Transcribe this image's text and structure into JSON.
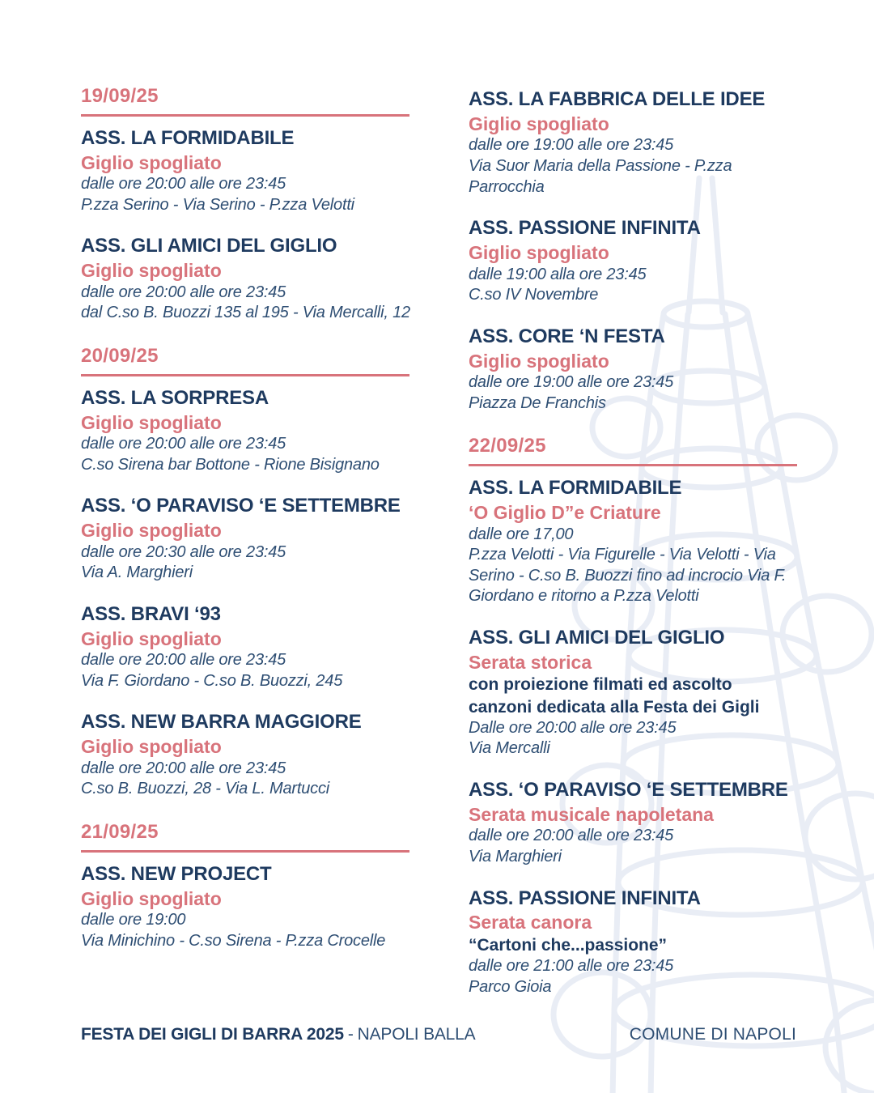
{
  "colors": {
    "salmon": "#d8737b",
    "navy": "#1e3a5f",
    "body": "#2e4e73",
    "watermark": "#e9edf5",
    "background": "#ffffff"
  },
  "columns": [
    {
      "blocks": [
        {
          "type": "date",
          "label": "19/09/25"
        },
        {
          "type": "event",
          "title": "ASS. LA FORMIDABILE",
          "subtitle": "Giglio spogliato",
          "details": [
            "dalle ore 20:00 alle ore 23:45",
            "P.zza Serino - Via Serino - P.zza Velotti"
          ]
        },
        {
          "type": "event",
          "title": "ASS. GLI AMICI DEL GIGLIO",
          "subtitle": "Giglio spogliato",
          "details": [
            "dalle ore 20:00 alle ore 23:45",
            "dal C.so B. Buozzi 135 al 195 - Via Mercalli, 12"
          ]
        },
        {
          "type": "date",
          "label": "20/09/25"
        },
        {
          "type": "event",
          "title": "ASS. LA SORPRESA",
          "subtitle": "Giglio spogliato",
          "details": [
            "dalle ore 20:00 alle ore 23:45",
            "C.so Sirena bar Bottone - Rione Bisignano"
          ]
        },
        {
          "type": "event",
          "title": "ASS. ‘O PARAVISO ‘E SETTEMBRE",
          "subtitle": "Giglio spogliato",
          "details": [
            "dalle ore 20:30 alle ore 23:45",
            "Via A. Marghieri"
          ]
        },
        {
          "type": "event",
          "title": "ASS. BRAVI ‘93",
          "subtitle": "Giglio spogliato",
          "details": [
            "dalle ore 20:00 alle ore 23:45",
            "Via F. Giordano - C.so B. Buozzi, 245"
          ]
        },
        {
          "type": "event",
          "title": "ASS. NEW BARRA MAGGIORE",
          "subtitle": "Giglio spogliato",
          "details": [
            "dalle ore 20:00 alle ore 23:45",
            "C.so B. Buozzi, 28 - Via L. Martucci"
          ]
        },
        {
          "type": "date",
          "label": "21/09/25"
        },
        {
          "type": "event",
          "title": "ASS. NEW PROJECT",
          "subtitle": "Giglio spogliato",
          "details": [
            "dalle ore 19:00",
            "Via Minichino - C.so Sirena - P.zza Crocelle"
          ]
        }
      ]
    },
    {
      "blocks": [
        {
          "type": "event",
          "title": "ASS. LA FABBRICA DELLE IDEE",
          "subtitle": "Giglio spogliato",
          "details": [
            "dalle ore 19:00 alle ore 23:45",
            "Via Suor Maria della Passione - P.zza",
            "Parrocchia"
          ]
        },
        {
          "type": "event",
          "title": "ASS. PASSIONE INFINITA",
          "subtitle": "Giglio spogliato",
          "details": [
            "dalle 19:00 alla ore 23:45",
            "C.so IV Novembre"
          ]
        },
        {
          "type": "event",
          "title": "ASS. CORE ‘N FESTA",
          "subtitle": "Giglio spogliato",
          "details": [
            "dalle ore 19:00 alle ore 23:45",
            "Piazza De Franchis"
          ]
        },
        {
          "type": "date",
          "label": "22/09/25"
        },
        {
          "type": "event",
          "title": "ASS. LA FORMIDABILE",
          "subtitle": "‘O Giglio D”e Criature",
          "details": [
            "dalle ore 17,00",
            "P.zza Velotti - Via Figurelle - Via Velotti - Via",
            "Serino - C.so B. Buozzi fino ad incrocio Via F.",
            "Giordano e ritorno a P.zza Velotti"
          ]
        },
        {
          "type": "event",
          "title": "ASS. GLI AMICI DEL GIGLIO",
          "subtitle": "Serata storica",
          "bold": [
            "con proiezione filmati ed ascolto",
            "canzoni dedicata alla Festa dei Gigli"
          ],
          "details": [
            "Dalle ore 20:00 alle ore 23:45",
            "Via Mercalli"
          ]
        },
        {
          "type": "event",
          "title": "ASS. ‘O PARAVISO ‘E SETTEMBRE",
          "subtitle": "Serata musicale napoletana",
          "details": [
            "dalle ore 20:00 alle ore 23:45",
            "Via Marghieri"
          ]
        },
        {
          "type": "event",
          "title": "ASS. PASSIONE INFINITA",
          "subtitle": "Serata canora",
          "bold": [
            "“Cartoni che...passione”"
          ],
          "details": [
            "dalle ore 21:00 alle ore 23:45",
            "Parco Gioia"
          ]
        }
      ]
    }
  ],
  "footer": {
    "festival": "FESTA DEI GIGLI DI BARRA 2025",
    "separator": "-",
    "edition": "NAPOLI BALLA",
    "organizer": "COMUNE DI NAPOLI"
  },
  "watermark_icon": "giglio-obelisk-line-drawing"
}
